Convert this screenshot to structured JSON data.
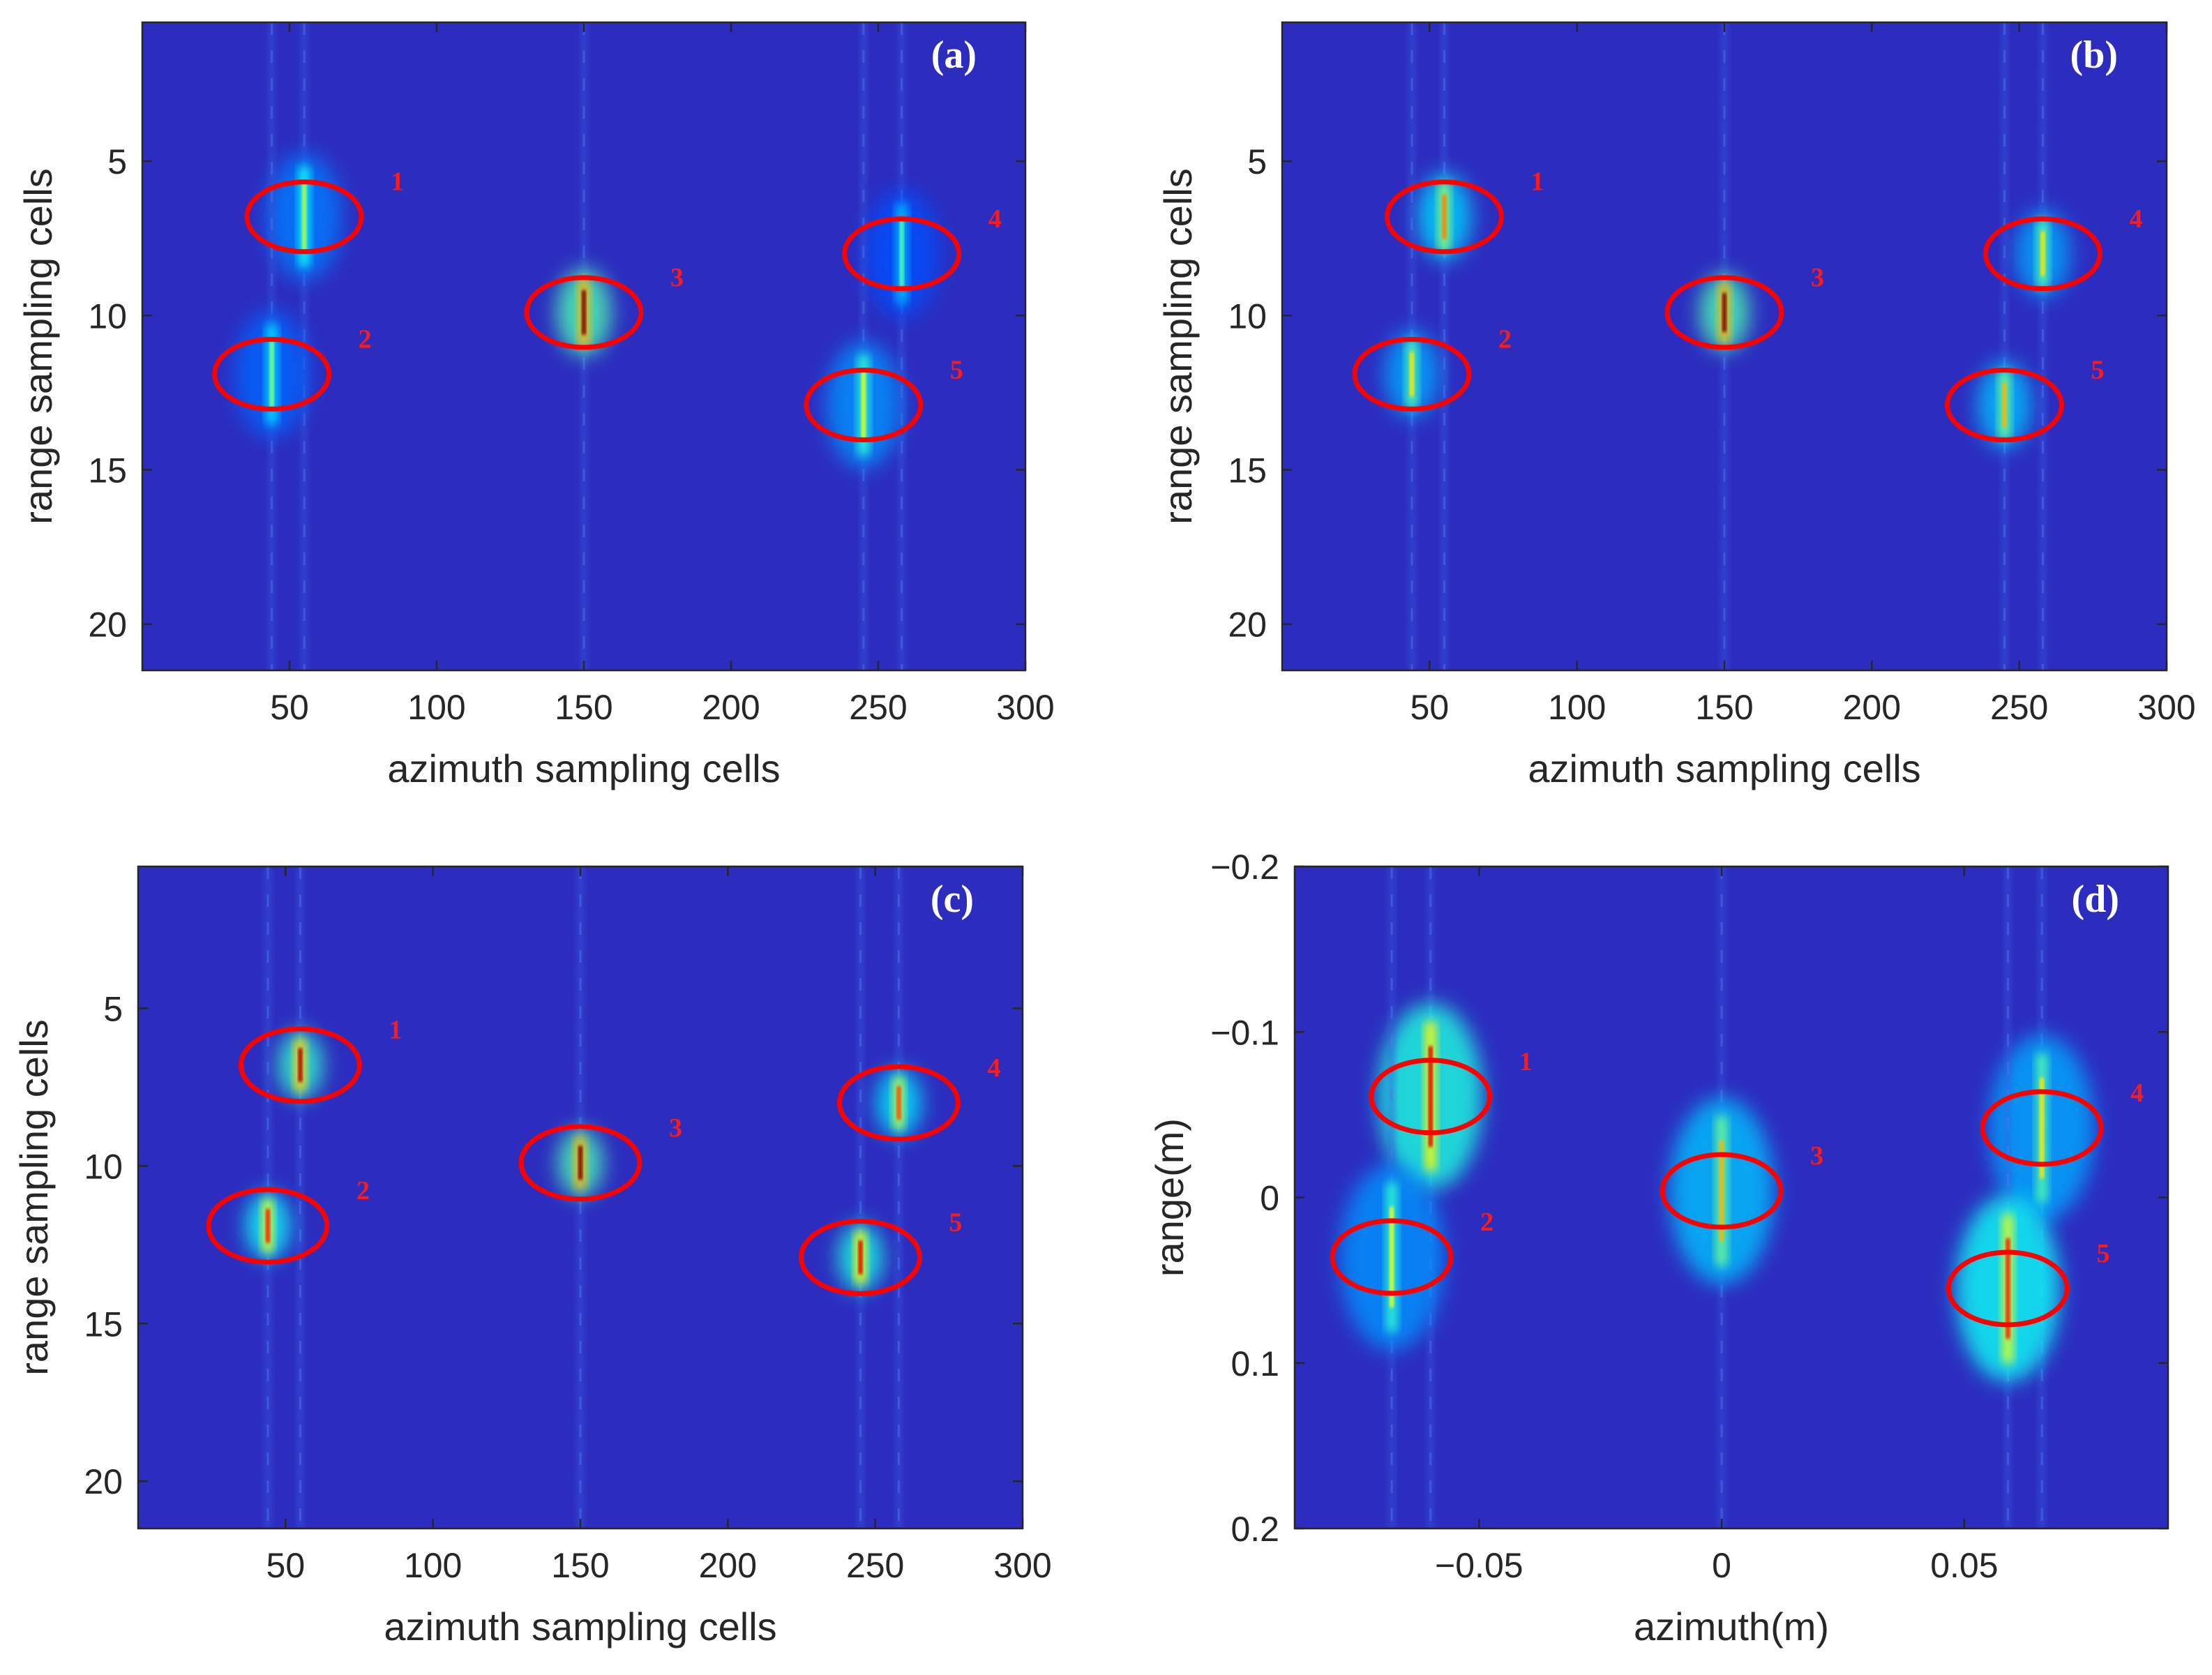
{
  "figure": {
    "colors": {
      "background": "#2c2dbf",
      "ellipse": "#ff0000",
      "axis": "#262626"
    }
  },
  "chart_data": [
    {
      "panel": "(a)",
      "type": "heatmap",
      "xlabel": "azimuth sampling cells",
      "ylabel": "range sampling cells",
      "xlim": [
        0,
        300
      ],
      "ylim": [
        21.5,
        0.5
      ],
      "xticks": [
        "50",
        "100",
        "150",
        "200",
        "250",
        "300"
      ],
      "xtick_values": [
        50,
        100,
        150,
        200,
        250,
        300
      ],
      "yticks": [
        "5",
        "10",
        "15",
        "20"
      ],
      "ytick_values": [
        5,
        10,
        15,
        20
      ],
      "targets": [
        {
          "label": "1",
          "x": 55,
          "y": 6.8,
          "spread": 1.0,
          "peak": 0.55
        },
        {
          "label": "2",
          "x": 44,
          "y": 11.9,
          "spread": 1.0,
          "peak": 0.5
        },
        {
          "label": "3",
          "x": 150,
          "y": 9.9,
          "spread": 0.6,
          "peak": 1.0
        },
        {
          "label": "4",
          "x": 258,
          "y": 8.0,
          "spread": 1.0,
          "peak": 0.45
        },
        {
          "label": "5",
          "x": 245,
          "y": 12.9,
          "spread": 1.0,
          "peak": 0.6
        }
      ]
    },
    {
      "panel": "(b)",
      "type": "heatmap",
      "xlabel": "azimuth sampling cells",
      "ylabel": "range sampling cells",
      "xlim": [
        0,
        300
      ],
      "ylim": [
        21.5,
        0.5
      ],
      "xticks": [
        "50",
        "100",
        "150",
        "200",
        "250",
        "300"
      ],
      "xtick_values": [
        50,
        100,
        150,
        200,
        250,
        300
      ],
      "yticks": [
        "5",
        "10",
        "15",
        "20"
      ],
      "ytick_values": [
        5,
        10,
        15,
        20
      ],
      "targets": [
        {
          "label": "1",
          "x": 55,
          "y": 6.8,
          "spread": 0.6,
          "peak": 0.75
        },
        {
          "label": "2",
          "x": 44,
          "y": 11.9,
          "spread": 0.6,
          "peak": 0.65
        },
        {
          "label": "3",
          "x": 150,
          "y": 9.9,
          "spread": 0.5,
          "peak": 1.0
        },
        {
          "label": "4",
          "x": 258,
          "y": 8.0,
          "spread": 0.6,
          "peak": 0.65
        },
        {
          "label": "5",
          "x": 245,
          "y": 12.9,
          "spread": 0.6,
          "peak": 0.7
        }
      ]
    },
    {
      "panel": "(c)",
      "type": "heatmap",
      "xlabel": "azimuth sampling cells",
      "ylabel": "range sampling cells",
      "xlim": [
        0,
        300
      ],
      "ylim": [
        21.5,
        0.5
      ],
      "xticks": [
        "50",
        "100",
        "150",
        "200",
        "250",
        "300"
      ],
      "xtick_values": [
        50,
        100,
        150,
        200,
        250,
        300
      ],
      "yticks": [
        "5",
        "10",
        "15",
        "20"
      ],
      "ytick_values": [
        5,
        10,
        15,
        20
      ],
      "targets": [
        {
          "label": "1",
          "x": 55,
          "y": 6.8,
          "spread": 0.4,
          "peak": 0.95
        },
        {
          "label": "2",
          "x": 44,
          "y": 11.9,
          "spread": 0.4,
          "peak": 0.85
        },
        {
          "label": "3",
          "x": 150,
          "y": 9.9,
          "spread": 0.4,
          "peak": 1.0
        },
        {
          "label": "4",
          "x": 258,
          "y": 8.0,
          "spread": 0.4,
          "peak": 0.8
        },
        {
          "label": "5",
          "x": 245,
          "y": 12.9,
          "spread": 0.4,
          "peak": 0.9
        }
      ]
    },
    {
      "panel": "(d)",
      "type": "heatmap",
      "xlabel": "azimuth(m)",
      "ylabel": "range(m)",
      "xlim": [
        -0.088,
        0.092
      ],
      "ylim": [
        0.2,
        -0.2
      ],
      "xticks": [
        "−0.05",
        "0",
        "0.05"
      ],
      "xtick_values": [
        -0.05,
        0,
        0.05
      ],
      "yticks": [
        "−0.2",
        "−0.1",
        "0",
        "0.1",
        "0.2"
      ],
      "ytick_values": [
        -0.2,
        -0.1,
        0,
        0.1,
        0.2
      ],
      "targets": [
        {
          "label": "1",
          "x": -0.06,
          "y": -0.061,
          "spread": 0.03,
          "peak": 0.9
        },
        {
          "label": "2",
          "x": -0.068,
          "y": 0.036,
          "spread": 0.03,
          "peak": 0.6
        },
        {
          "label": "3",
          "x": 0.0,
          "y": -0.004,
          "spread": 0.03,
          "peak": 0.7
        },
        {
          "label": "4",
          "x": 0.066,
          "y": -0.042,
          "spread": 0.03,
          "peak": 0.65
        },
        {
          "label": "5",
          "x": 0.059,
          "y": 0.055,
          "spread": 0.03,
          "peak": 0.85
        }
      ]
    }
  ]
}
